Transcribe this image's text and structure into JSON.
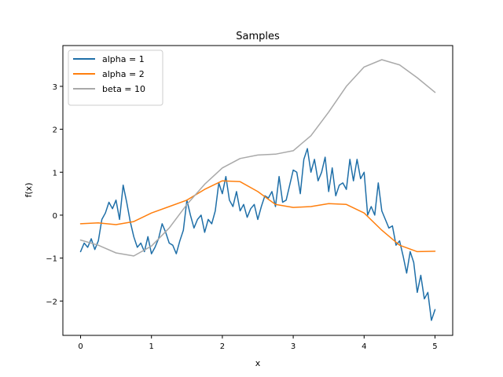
{
  "chart_data": {
    "type": "line",
    "title": "Samples",
    "xlabel": "x",
    "ylabel": "f(x)",
    "xlim": [
      -0.25,
      5.25
    ],
    "ylim": [
      -2.8,
      3.95
    ],
    "xticks": [
      0,
      1,
      2,
      3,
      4,
      5
    ],
    "yticks": [
      -2,
      -1,
      0,
      1,
      2,
      3
    ],
    "xtick_labels": [
      "0",
      "1",
      "2",
      "3",
      "4",
      "5"
    ],
    "ytick_labels": [
      "−2",
      "−1",
      "0",
      "1",
      "2",
      "3"
    ],
    "grid": false,
    "legend_position": "top-left",
    "series": [
      {
        "name": "alpha = 1",
        "color": "#1f6fa8",
        "x": [
          0,
          0.05,
          0.1,
          0.15,
          0.2,
          0.25,
          0.3,
          0.35,
          0.4,
          0.45,
          0.5,
          0.55,
          0.6,
          0.65,
          0.7,
          0.75,
          0.8,
          0.85,
          0.9,
          0.95,
          1.0,
          1.05,
          1.1,
          1.15,
          1.2,
          1.25,
          1.3,
          1.35,
          1.4,
          1.45,
          1.5,
          1.55,
          1.6,
          1.65,
          1.7,
          1.75,
          1.8,
          1.85,
          1.9,
          1.95,
          2.0,
          2.05,
          2.1,
          2.15,
          2.2,
          2.25,
          2.3,
          2.35,
          2.4,
          2.45,
          2.5,
          2.55,
          2.6,
          2.65,
          2.7,
          2.75,
          2.8,
          2.85,
          2.9,
          2.95,
          3.0,
          3.05,
          3.1,
          3.15,
          3.2,
          3.25,
          3.3,
          3.35,
          3.4,
          3.45,
          3.5,
          3.55,
          3.6,
          3.65,
          3.7,
          3.75,
          3.8,
          3.85,
          3.9,
          3.95,
          4.0,
          4.05,
          4.1,
          4.15,
          4.2,
          4.25,
          4.3,
          4.35,
          4.4,
          4.45,
          4.5,
          4.55,
          4.6,
          4.65,
          4.7,
          4.75,
          4.8,
          4.85,
          4.9,
          4.95,
          5.0
        ],
        "y": [
          -0.85,
          -0.65,
          -0.75,
          -0.55,
          -0.8,
          -0.6,
          -0.1,
          0.05,
          0.3,
          0.15,
          0.35,
          -0.1,
          0.7,
          0.3,
          -0.15,
          -0.5,
          -0.75,
          -0.65,
          -0.85,
          -0.5,
          -0.9,
          -0.75,
          -0.55,
          -0.2,
          -0.4,
          -0.65,
          -0.7,
          -0.9,
          -0.6,
          -0.35,
          0.35,
          0.0,
          -0.3,
          -0.1,
          0.0,
          -0.4,
          -0.1,
          -0.2,
          0.1,
          0.75,
          0.5,
          0.9,
          0.35,
          0.2,
          0.55,
          0.1,
          0.25,
          -0.05,
          0.15,
          0.25,
          -0.1,
          0.2,
          0.45,
          0.4,
          0.55,
          0.2,
          0.9,
          0.3,
          0.35,
          0.7,
          1.05,
          1.0,
          0.5,
          1.3,
          1.55,
          1.0,
          1.3,
          0.8,
          1.0,
          1.35,
          0.55,
          1.1,
          0.45,
          0.7,
          0.75,
          0.6,
          1.3,
          0.8,
          1.3,
          0.85,
          1.0,
          0.0,
          0.2,
          0.0,
          0.75,
          0.1,
          -0.1,
          -0.3,
          -0.25,
          -0.7,
          -0.6,
          -0.95,
          -1.35,
          -0.85,
          -1.1,
          -1.8,
          -1.4,
          -1.95,
          -1.8,
          -2.45,
          -2.2
        ]
      },
      {
        "name": "alpha = 2",
        "color": "#ff7f0e",
        "x": [
          0,
          0.25,
          0.5,
          0.75,
          1.0,
          1.25,
          1.5,
          1.75,
          2.0,
          2.25,
          2.5,
          2.75,
          3.0,
          3.25,
          3.5,
          3.75,
          4.0,
          4.25,
          4.5,
          4.75,
          5.0
        ],
        "y": [
          -0.2,
          -0.18,
          -0.22,
          -0.15,
          0.05,
          0.2,
          0.35,
          0.6,
          0.8,
          0.78,
          0.55,
          0.25,
          0.18,
          0.2,
          0.27,
          0.25,
          0.05,
          -0.35,
          -0.7,
          -0.85,
          -0.84
        ]
      },
      {
        "name": "beta = 10",
        "color": "#a9a9a9",
        "x": [
          0,
          0.25,
          0.5,
          0.75,
          1.0,
          1.25,
          1.5,
          1.75,
          2.0,
          2.25,
          2.5,
          2.75,
          3.0,
          3.25,
          3.5,
          3.75,
          4.0,
          4.25,
          4.5,
          4.75,
          5.0
        ],
        "y": [
          -0.58,
          -0.7,
          -0.88,
          -0.95,
          -0.72,
          -0.3,
          0.25,
          0.72,
          1.1,
          1.32,
          1.4,
          1.42,
          1.5,
          1.85,
          2.4,
          3.0,
          3.45,
          3.62,
          3.5,
          3.2,
          2.86
        ]
      }
    ]
  }
}
